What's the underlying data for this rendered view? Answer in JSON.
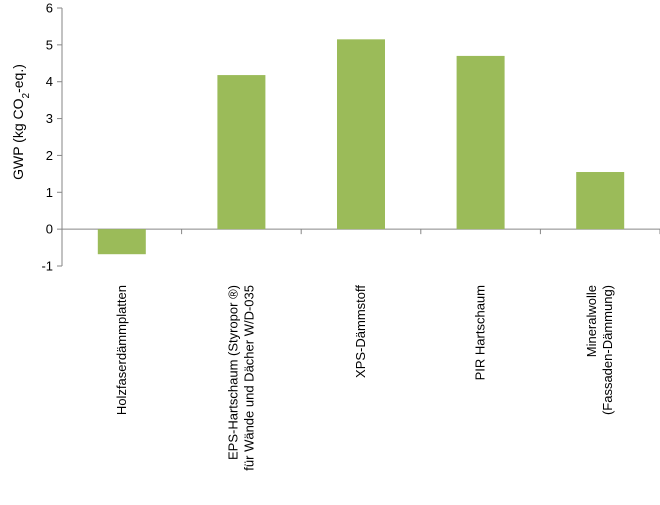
{
  "chart_data": {
    "type": "bar",
    "categories": [
      [
        "Holzfaserdämmplatten"
      ],
      [
        "EPS-Hartschaum (Styropor ®)",
        "für Wände und Dächer W/D-035"
      ],
      [
        "XPS-Dämmstoff"
      ],
      [
        "PIR Hartschaum"
      ],
      [
        "Mineralwolle",
        "(Fassaden-Dämmung)"
      ]
    ],
    "values": [
      -0.68,
      4.18,
      5.15,
      4.7,
      1.55
    ],
    "ylim": [
      -1,
      6
    ],
    "yticks": [
      -1,
      0,
      1,
      2,
      3,
      4,
      5,
      6
    ],
    "ylabel_parts": {
      "main": "GWP (kg CO",
      "sub": "2",
      "tail": "-eq.)"
    },
    "bar_color": "#9bbb59",
    "axis_color": "#868686",
    "grid": false
  }
}
